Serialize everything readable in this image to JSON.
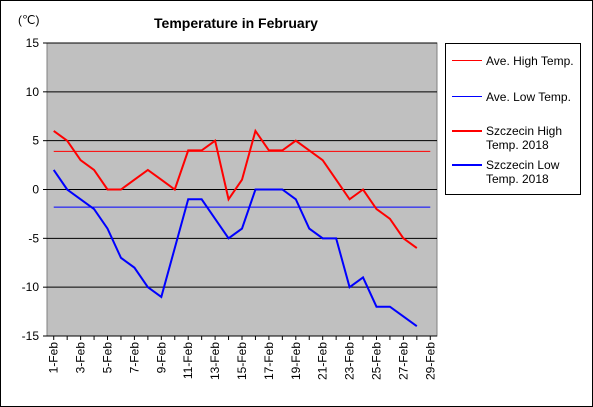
{
  "chart_data": {
    "type": "line",
    "title": "Temperature in February",
    "y_label": "(℃)",
    "categories": [
      "1-Feb",
      null,
      "3-Feb",
      null,
      "5-Feb",
      null,
      "7-Feb",
      null,
      "9-Feb",
      null,
      "11-Feb",
      null,
      "13-Feb",
      null,
      "15-Feb",
      null,
      "17-Feb",
      null,
      "19-Feb",
      null,
      "21-Feb",
      null,
      "23-Feb",
      null,
      "25-Feb",
      null,
      "27-Feb",
      null,
      "29-Feb"
    ],
    "series": [
      {
        "name": "Ave. High Temp.",
        "color": "#ff0000",
        "width": 1,
        "values": [
          3.9,
          3.9,
          3.9,
          3.9,
          3.9,
          3.9,
          3.9,
          3.9,
          3.9,
          3.9,
          3.9,
          3.9,
          3.9,
          3.9,
          3.9,
          3.9,
          3.9,
          3.9,
          3.9,
          3.9,
          3.9,
          3.9,
          3.9,
          3.9,
          3.9,
          3.9,
          3.9,
          3.9,
          3.9
        ]
      },
      {
        "name": "Ave. Low Temp.",
        "color": "#0000ff",
        "width": 1,
        "values": [
          -1.8,
          -1.8,
          -1.8,
          -1.8,
          -1.8,
          -1.8,
          -1.8,
          -1.8,
          -1.8,
          -1.8,
          -1.8,
          -1.8,
          -1.8,
          -1.8,
          -1.8,
          -1.8,
          -1.8,
          -1.8,
          -1.8,
          -1.8,
          -1.8,
          -1.8,
          -1.8,
          -1.8,
          -1.8,
          -1.8,
          -1.8,
          -1.8,
          -1.8
        ]
      },
      {
        "name": "Szczecin High Temp. 2018",
        "color": "#ff0000",
        "width": 2,
        "values": [
          6,
          5,
          3,
          2,
          0,
          0,
          1,
          2,
          1,
          0,
          4,
          4,
          5,
          -1,
          1,
          6,
          4,
          4,
          5,
          4,
          3,
          1,
          -1,
          0,
          -2,
          -3,
          -5,
          -6,
          null
        ]
      },
      {
        "name": "Szczecin Low Temp. 2018",
        "color": "#0000ff",
        "width": 2,
        "values": [
          2,
          0,
          -1,
          -2,
          -4,
          -7,
          -8,
          -10,
          -11,
          -6,
          -1,
          -1,
          -3,
          -5,
          -4,
          0,
          0,
          0,
          -1,
          -4,
          -5,
          -5,
          -10,
          -9,
          -12,
          -12,
          -13,
          -14,
          null
        ]
      }
    ],
    "ylim": [
      -15,
      15
    ],
    "yticks": [
      -15,
      -10,
      -5,
      0,
      5,
      10,
      15
    ],
    "grid": true
  }
}
